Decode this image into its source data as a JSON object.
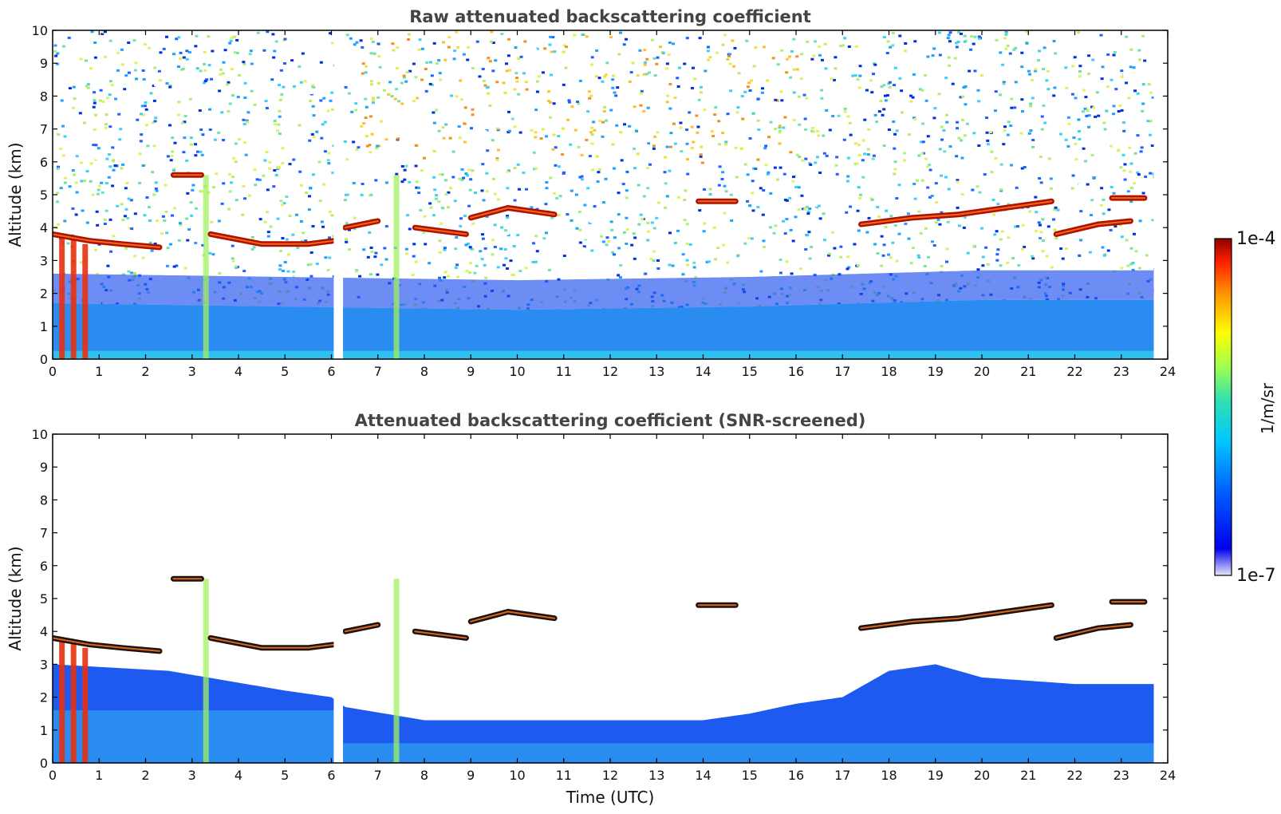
{
  "chart_data": [
    {
      "type": "heatmap",
      "title": "Raw attenuated backscattering coefficient",
      "xlabel": "",
      "ylabel": "Altitude (km)",
      "xlim": [
        0,
        24
      ],
      "ylim": [
        0,
        10
      ],
      "xticks": [
        0,
        1,
        2,
        3,
        4,
        5,
        6,
        7,
        8,
        9,
        10,
        11,
        12,
        13,
        14,
        15,
        16,
        17,
        18,
        19,
        20,
        21,
        22,
        23,
        24
      ],
      "yticks": [
        0,
        1,
        2,
        3,
        4,
        5,
        6,
        7,
        8,
        9,
        10
      ],
      "data_gap_utc": [
        6.05,
        6.25
      ],
      "data_end_utc": 23.7,
      "features": {
        "boundary_layer_top_km": [
          [
            0,
            1.7
          ],
          [
            5,
            1.6
          ],
          [
            10,
            1.5
          ],
          [
            15,
            1.6
          ],
          [
            20,
            1.8
          ],
          [
            23.7,
            1.8
          ]
        ],
        "cloud_layers": [
          {
            "x": [
              0.0,
              0.8,
              1.5,
              2.3
            ],
            "y": [
              3.8,
              3.6,
              3.5,
              3.4
            ]
          },
          {
            "x": [
              2.6,
              3.2
            ],
            "y": [
              5.6,
              5.6
            ]
          },
          {
            "x": [
              3.4,
              4.5,
              5.5,
              6.05
            ],
            "y": [
              3.8,
              3.5,
              3.5,
              3.6
            ]
          },
          {
            "x": [
              6.3,
              7.0
            ],
            "y": [
              4.0,
              4.2
            ]
          },
          {
            "x": [
              7.8,
              8.9
            ],
            "y": [
              4.0,
              3.8
            ]
          },
          {
            "x": [
              9.0,
              9.8,
              10.8
            ],
            "y": [
              4.3,
              4.6,
              4.4
            ]
          },
          {
            "x": [
              13.9,
              14.7
            ],
            "y": [
              4.8,
              4.8
            ]
          },
          {
            "x": [
              17.4,
              18.5,
              19.5,
              20.5,
              21.5
            ],
            "y": [
              4.1,
              4.3,
              4.4,
              4.6,
              4.8
            ]
          },
          {
            "x": [
              21.6,
              22.5,
              23.2
            ],
            "y": [
              3.8,
              4.1,
              4.2
            ]
          },
          {
            "x": [
              22.8,
              23.5
            ],
            "y": [
              4.9,
              4.9
            ]
          }
        ],
        "precipitation_columns": [
          {
            "x": 0.2,
            "top": 3.7
          },
          {
            "x": 0.45,
            "top": 3.7
          },
          {
            "x": 0.7,
            "top": 3.5
          },
          {
            "x": 3.3,
            "top": 5.6
          },
          {
            "x": 7.4,
            "top": 5.6
          }
        ]
      }
    },
    {
      "type": "heatmap",
      "title": "Attenuated backscattering coefficient (SNR-screened)",
      "xlabel": "Time (UTC)",
      "ylabel": "Altitude (km)",
      "xlim": [
        0,
        24
      ],
      "ylim": [
        0,
        10
      ],
      "xticks": [
        0,
        1,
        2,
        3,
        4,
        5,
        6,
        7,
        8,
        9,
        10,
        11,
        12,
        13,
        14,
        15,
        16,
        17,
        18,
        19,
        20,
        21,
        22,
        23,
        24
      ],
      "yticks": [
        0,
        1,
        2,
        3,
        4,
        5,
        6,
        7,
        8,
        9,
        10
      ],
      "data_gap_utc": [
        6.05,
        6.25
      ],
      "data_end_utc": 23.7,
      "features": {
        "screened_layer_top_km": [
          [
            0,
            3.0
          ],
          [
            2.5,
            2.8
          ],
          [
            5,
            2.2
          ],
          [
            6,
            2.0
          ],
          [
            6.3,
            1.7
          ],
          [
            8,
            1.3
          ],
          [
            12,
            1.3
          ],
          [
            14,
            1.3
          ],
          [
            15,
            1.5
          ],
          [
            16,
            1.8
          ],
          [
            17,
            2.0
          ],
          [
            18,
            2.8
          ],
          [
            19,
            3.0
          ],
          [
            20,
            2.6
          ],
          [
            22,
            2.4
          ],
          [
            23.7,
            2.4
          ]
        ]
      }
    }
  ],
  "colorbar": {
    "label": "1/m/sr",
    "max_label": "1e-4",
    "min_label": "1e-7",
    "scale": "log",
    "range": [
      1e-07,
      0.0001
    ]
  }
}
